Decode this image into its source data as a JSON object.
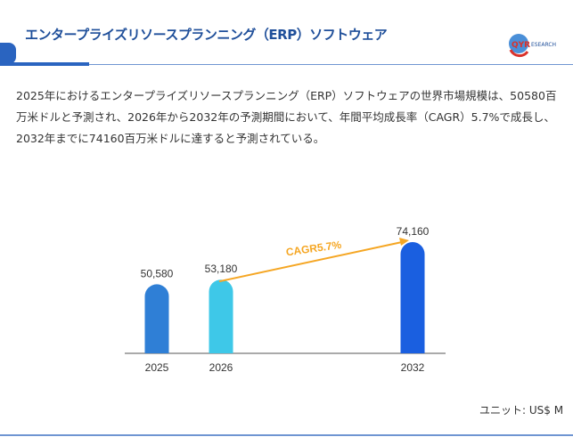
{
  "header": {
    "title": "エンタープライズリソースプランニング（ERP）ソフトウェア",
    "logo_text": "QYRESEARCH"
  },
  "description": "2025年におけるエンタープライズリソースプランニング（ERP）ソフトウェアの世界市場規模は、50580百万米ドルと予測され、2026年から2032年の予測期間において、年間平均成長率（CAGR）5.7%で成長し、2032年までに74160百万米ドルに達すると予測されている。",
  "unit": "ユニット: US$ M",
  "chart_data": {
    "type": "bar",
    "categories": [
      "2025",
      "2026",
      "2032"
    ],
    "values": [
      50580,
      53180,
      74160
    ],
    "labels": [
      "50,580",
      "53,180",
      "74,160"
    ],
    "colors": [
      "#2f7fd6",
      "#3ec8e8",
      "#1a5fe0"
    ],
    "annotation": {
      "text": "CAGR5.7%",
      "from": "2026",
      "to": "2032",
      "color": "#f5a623"
    },
    "ylim": [
      0,
      80000
    ]
  }
}
